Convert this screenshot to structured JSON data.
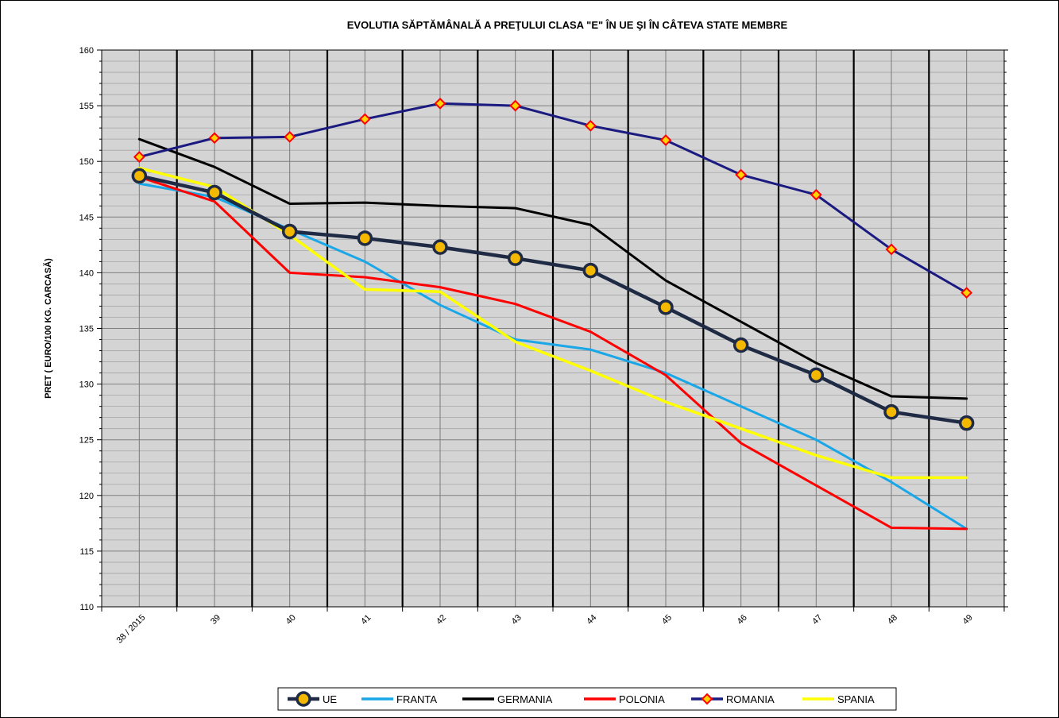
{
  "chart_data": {
    "type": "line",
    "title": "EVOLUTIA SĂPTĂMÂNALĂ  A PREŢULUI CLASA \"E\"  ÎN  UE ŞI ÎN  CÂTEVA STATE MEMBRE",
    "ylabel": "PRET ( EURO/100 KG. CARCASĂ)",
    "xlabel": "",
    "ylim": [
      110,
      160
    ],
    "ytick_step": 5,
    "categories": [
      "38 / 2015",
      "39",
      "40",
      "41",
      "42",
      "43",
      "44",
      "45",
      "46",
      "47",
      "48",
      "49"
    ],
    "grid": true,
    "legend": "bottom",
    "series": [
      {
        "name": "UE",
        "color": "#1f2a44",
        "marker": "circle-gold",
        "values": [
          148.7,
          147.2,
          143.7,
          143.1,
          142.3,
          141.3,
          140.2,
          136.9,
          133.5,
          130.8,
          127.5,
          126.5
        ]
      },
      {
        "name": "FRANTA",
        "color": "#1aa7e8",
        "marker": "none",
        "values": [
          148.0,
          146.8,
          143.9,
          141.0,
          137.1,
          134.0,
          133.1,
          131.0,
          128.0,
          125.0,
          121.2,
          117.0
        ]
      },
      {
        "name": "GERMANIA",
        "color": "#000000",
        "marker": "none",
        "values": [
          152.0,
          149.5,
          146.2,
          146.3,
          146.0,
          145.8,
          144.3,
          139.3,
          135.6,
          131.9,
          128.9,
          128.7
        ]
      },
      {
        "name": "POLONIA",
        "color": "#ff0000",
        "marker": "none",
        "values": [
          148.6,
          146.4,
          140.0,
          139.6,
          138.7,
          137.2,
          134.7,
          130.8,
          124.7,
          120.9,
          117.1,
          117.0
        ]
      },
      {
        "name": "ROMANIA",
        "color": "#1a1a80",
        "marker": "diamond-red",
        "values": [
          150.4,
          152.1,
          152.2,
          153.8,
          155.2,
          155.0,
          153.2,
          151.9,
          148.8,
          147.0,
          142.1,
          138.2
        ]
      },
      {
        "name": "SPANIA",
        "color": "#ffff00",
        "marker": "none",
        "values": [
          149.4,
          147.7,
          143.4,
          138.5,
          138.3,
          133.8,
          131.2,
          128.4,
          126.0,
          123.6,
          121.6,
          121.6
        ]
      }
    ]
  }
}
